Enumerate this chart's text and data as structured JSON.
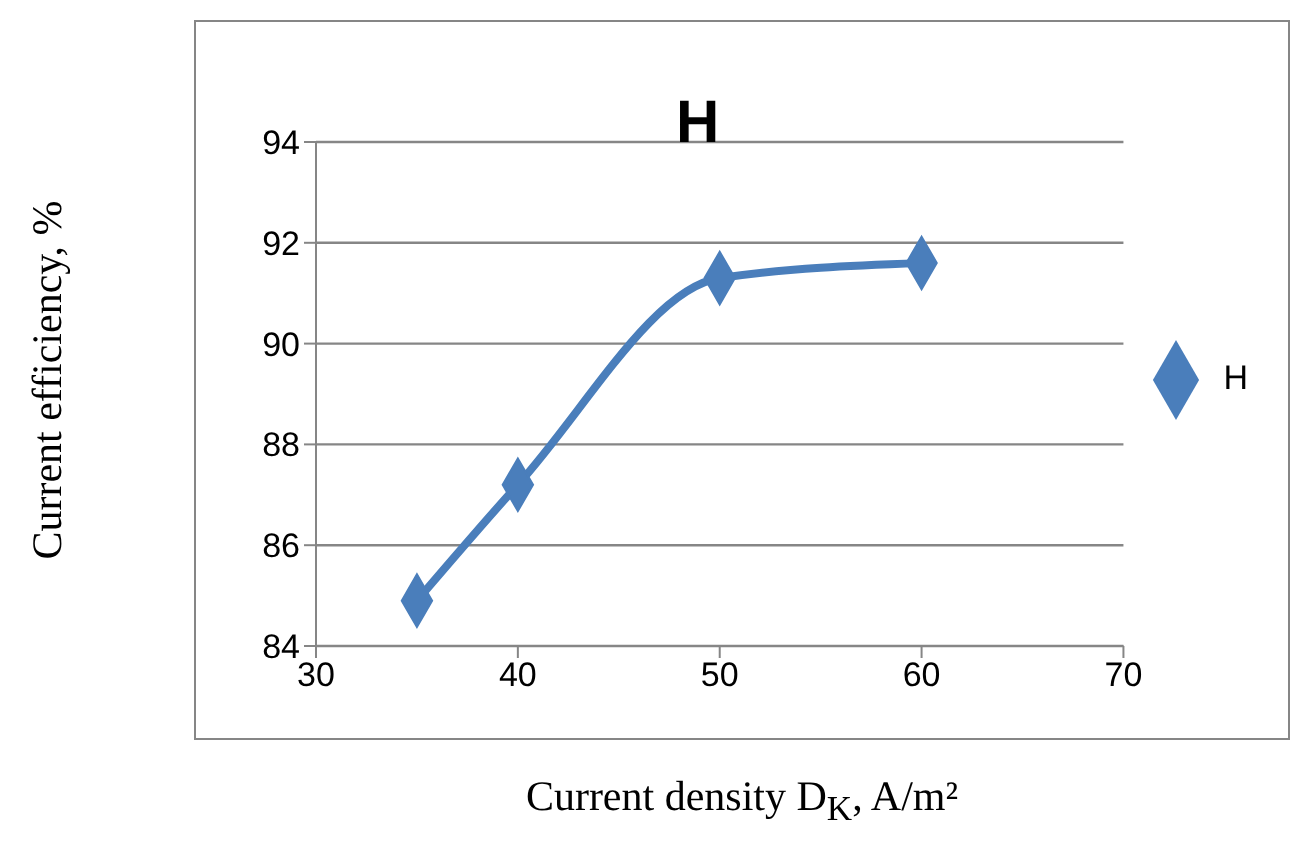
{
  "chart_data": {
    "type": "line",
    "title": "H",
    "xlabel": "Current density D$_{K}$, A/m²",
    "ylabel": "Current efficiency, %",
    "x": [
      35,
      40,
      50,
      60
    ],
    "series": [
      {
        "name": "H",
        "color": "#4a7ebb",
        "values": [
          84.9,
          87.2,
          91.3,
          91.6
        ]
      }
    ],
    "xlim": [
      30,
      70
    ],
    "xticks": [
      30,
      40,
      50,
      60,
      70
    ],
    "ylim": [
      84,
      94
    ],
    "yticks": [
      84,
      86,
      88,
      90,
      92,
      94
    ],
    "grid": "y",
    "legend": "right",
    "marker": "diamond",
    "line_style": "solid"
  }
}
